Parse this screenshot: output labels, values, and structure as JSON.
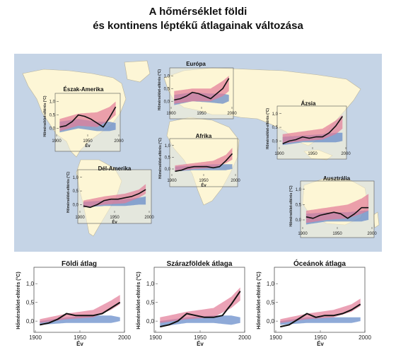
{
  "title_line1": "A hőmérséklet földi",
  "title_line2": "és kontinens léptékű átlagainak változása",
  "colors": {
    "ocean": "#c5d4e6",
    "land": "#fdf6d6",
    "anthro_band": "#e27b97",
    "natural_band": "#5f86c7",
    "observed": "#111111"
  },
  "chart_data": [
    {
      "type": "line",
      "name": "Észak-Amerika",
      "title": "Észak-Amerika",
      "xlabel": "Év",
      "ylabel": "Hőmérséklet-eltérés (°C)",
      "xlim": [
        1900,
        2000
      ],
      "ylim": [
        -0.3,
        1.2
      ],
      "xticks": [
        1900,
        1950,
        2000
      ],
      "xtick_labels": [
        "1900",
        "1950",
        "2000"
      ],
      "yticks": [
        0,
        0.5,
        1.0
      ],
      "ytick_labels": [
        "0,0",
        "0,5",
        "1,0"
      ],
      "observed": {
        "x": [
          1905,
          1915,
          1925,
          1935,
          1945,
          1955,
          1965,
          1975,
          1985,
          1995
        ],
        "y": [
          0.05,
          0.1,
          0.25,
          0.5,
          0.45,
          0.35,
          0.2,
          0.05,
          0.4,
          0.8
        ],
        "dashed_start": 1905
      },
      "anthro_band": {
        "x": [
          1905,
          1935,
          1965,
          1985,
          1995
        ],
        "low": [
          -0.1,
          0.1,
          0.05,
          0.3,
          0.5
        ],
        "high": [
          0.35,
          0.55,
          0.6,
          0.8,
          1.0
        ]
      },
      "natural_band": {
        "x": [
          1905,
          1935,
          1965,
          1985,
          1995
        ],
        "low": [
          -0.15,
          0.0,
          -0.1,
          -0.1,
          -0.05
        ],
        "high": [
          0.25,
          0.35,
          0.25,
          0.25,
          0.2
        ]
      }
    },
    {
      "type": "line",
      "name": "Európa",
      "title": "Európa",
      "xlabel": "",
      "ylabel": "Hőmérséklet-eltérés (°C)",
      "xlim": [
        1900,
        2000
      ],
      "ylim": [
        -0.3,
        1.2
      ],
      "xticks": [
        1900,
        1950,
        2000
      ],
      "xtick_labels": [
        "1900",
        "1950",
        "2000"
      ],
      "yticks": [
        0,
        0.5,
        1.0
      ],
      "ytick_labels": [
        "0,0",
        "0,5",
        "1,0"
      ],
      "observed": {
        "x": [
          1905,
          1915,
          1925,
          1935,
          1945,
          1955,
          1965,
          1975,
          1985,
          1995
        ],
        "y": [
          0.05,
          0.1,
          0.2,
          0.35,
          0.3,
          0.2,
          0.1,
          0.3,
          0.5,
          0.9
        ],
        "dashed_start": null
      },
      "anthro_band": {
        "x": [
          1905,
          1935,
          1965,
          1985,
          1995
        ],
        "low": [
          -0.1,
          0.0,
          0.0,
          0.2,
          0.4
        ],
        "high": [
          0.4,
          0.5,
          0.5,
          0.8,
          1.0
        ]
      },
      "natural_band": {
        "x": [
          1905,
          1935,
          1965,
          1985,
          1995
        ],
        "low": [
          -0.15,
          0.0,
          -0.05,
          -0.1,
          0.0
        ],
        "high": [
          0.25,
          0.35,
          0.3,
          0.3,
          0.25
        ]
      }
    },
    {
      "type": "line",
      "name": "Ázsia",
      "title": "Ázsia",
      "xlabel": "",
      "ylabel": "Hőmérséklet-eltérés (°C)",
      "xlim": [
        1900,
        2000
      ],
      "ylim": [
        -0.3,
        1.2
      ],
      "xticks": [
        1900,
        1950,
        2000
      ],
      "xtick_labels": [
        "1900",
        "1950",
        "2000"
      ],
      "yticks": [
        0,
        0.5,
        1.0
      ],
      "ytick_labels": [
        "0,0",
        "0,5",
        "1,0"
      ],
      "observed": {
        "x": [
          1905,
          1915,
          1925,
          1935,
          1945,
          1955,
          1965,
          1975,
          1985,
          1995
        ],
        "y": [
          -0.1,
          0.0,
          0.05,
          0.15,
          0.1,
          0.15,
          0.15,
          0.3,
          0.55,
          0.9
        ],
        "dashed_start": null
      },
      "anthro_band": {
        "x": [
          1905,
          1935,
          1965,
          1985,
          1995
        ],
        "low": [
          -0.1,
          0.0,
          0.05,
          0.25,
          0.45
        ],
        "high": [
          0.25,
          0.35,
          0.45,
          0.75,
          0.95
        ]
      },
      "natural_band": {
        "x": [
          1905,
          1935,
          1965,
          1985,
          1995
        ],
        "low": [
          -0.15,
          -0.05,
          -0.05,
          -0.05,
          0.0
        ],
        "high": [
          0.15,
          0.2,
          0.25,
          0.3,
          0.3
        ]
      }
    },
    {
      "type": "line",
      "name": "Afrika",
      "title": "Afrika",
      "xlabel": "Év",
      "ylabel": "Hőmérséklet-eltérés (°C)",
      "xlim": [
        1900,
        2000
      ],
      "ylim": [
        -0.3,
        1.2
      ],
      "xticks": [
        1900,
        1950,
        2000
      ],
      "xtick_labels": [
        "1900",
        "1950",
        "2000"
      ],
      "yticks": [
        0,
        0.5,
        1.0
      ],
      "ytick_labels": [
        "0,0",
        "0,5",
        "1,0"
      ],
      "observed": {
        "x": [
          1905,
          1915,
          1925,
          1935,
          1945,
          1955,
          1965,
          1975,
          1985,
          1995
        ],
        "y": [
          -0.1,
          -0.05,
          0.05,
          0.1,
          0.1,
          0.1,
          0.05,
          0.1,
          0.35,
          0.65
        ],
        "dashed_start": 1905
      },
      "anthro_band": {
        "x": [
          1905,
          1935,
          1965,
          1985,
          1995
        ],
        "low": [
          -0.1,
          0.0,
          0.05,
          0.25,
          0.4
        ],
        "high": [
          0.15,
          0.25,
          0.35,
          0.6,
          0.9
        ]
      },
      "natural_band": {
        "x": [
          1905,
          1935,
          1965,
          1985,
          1995
        ],
        "low": [
          -0.1,
          -0.05,
          -0.05,
          -0.05,
          0.0
        ],
        "high": [
          0.1,
          0.15,
          0.2,
          0.2,
          0.2
        ]
      }
    },
    {
      "type": "line",
      "name": "Dél-Amerika",
      "title": "Dél-Amerika",
      "xlabel": "Év",
      "ylabel": "Hőmérséklet-eltérés (°C)",
      "xlim": [
        1900,
        2000
      ],
      "ylim": [
        -0.3,
        1.2
      ],
      "xticks": [
        1900,
        1950,
        2000
      ],
      "xtick_labels": [
        "1900",
        "1950",
        "2000"
      ],
      "yticks": [
        0,
        0.5,
        1.0
      ],
      "ytick_labels": [
        "0,0",
        "0,5",
        "1,0"
      ],
      "observed": {
        "x": [
          1905,
          1915,
          1925,
          1935,
          1945,
          1955,
          1965,
          1975,
          1985,
          1995
        ],
        "y": [
          -0.05,
          -0.1,
          0.0,
          0.15,
          0.2,
          0.2,
          0.25,
          0.3,
          0.4,
          0.55
        ],
        "dashed_start": 1905
      },
      "anthro_band": {
        "x": [
          1905,
          1935,
          1965,
          1985,
          1995
        ],
        "low": [
          -0.1,
          0.0,
          0.05,
          0.25,
          0.4
        ],
        "high": [
          0.15,
          0.3,
          0.4,
          0.55,
          0.75
        ]
      },
      "natural_band": {
        "x": [
          1905,
          1935,
          1965,
          1985,
          1995
        ],
        "low": [
          -0.1,
          -0.05,
          -0.05,
          0.0,
          0.0
        ],
        "high": [
          0.1,
          0.15,
          0.2,
          0.25,
          0.3
        ]
      }
    },
    {
      "type": "line",
      "name": "Ausztrália",
      "title": "Ausztrália",
      "xlabel": "",
      "ylabel": "Hőmérséklet-eltérés (°C)",
      "xlim": [
        1900,
        2000
      ],
      "ylim": [
        -0.3,
        1.2
      ],
      "xticks": [
        1900,
        1950,
        2000
      ],
      "xtick_labels": [
        "1900",
        "1950",
        "2000"
      ],
      "yticks": [
        0,
        0.5,
        1.0
      ],
      "ytick_labels": [
        "0,0",
        "0,5",
        "1,0"
      ],
      "observed": {
        "x": [
          1905,
          1915,
          1925,
          1935,
          1945,
          1955,
          1965,
          1975,
          1985,
          1995
        ],
        "y": [
          0.1,
          0.05,
          0.15,
          0.2,
          0.25,
          0.2,
          0.05,
          0.2,
          0.4,
          0.4
        ],
        "dashed_start": null
      },
      "anthro_band": {
        "x": [
          1905,
          1935,
          1965,
          1985,
          1995
        ],
        "low": [
          -0.1,
          0.0,
          0.05,
          0.2,
          0.3
        ],
        "high": [
          0.3,
          0.4,
          0.5,
          0.7,
          0.85
        ]
      },
      "natural_band": {
        "x": [
          1905,
          1935,
          1965,
          1985,
          1995
        ],
        "low": [
          -0.15,
          -0.05,
          -0.05,
          -0.05,
          0.0
        ],
        "high": [
          0.2,
          0.25,
          0.25,
          0.3,
          0.3
        ]
      }
    },
    {
      "type": "line",
      "name": "Földi átlag",
      "title": "Földi átlag",
      "xlabel": "Év",
      "ylabel": "Hőmérséklet-eltérés (°C)",
      "xlim": [
        1900,
        2000
      ],
      "ylim": [
        -0.3,
        1.4
      ],
      "xticks": [
        1900,
        1950,
        2000
      ],
      "xtick_labels": [
        "1900",
        "1950",
        "2000"
      ],
      "yticks": [
        0,
        0.5,
        1.0
      ],
      "ytick_labels": [
        "0,0",
        "0,5",
        "1,0"
      ],
      "observed": {
        "x": [
          1905,
          1915,
          1925,
          1935,
          1945,
          1955,
          1965,
          1975,
          1985,
          1995
        ],
        "y": [
          -0.1,
          -0.05,
          0.05,
          0.2,
          0.15,
          0.15,
          0.15,
          0.2,
          0.35,
          0.5
        ],
        "dashed_start": 1905
      },
      "anthro_band": {
        "x": [
          1905,
          1935,
          1965,
          1985,
          1995
        ],
        "low": [
          -0.05,
          0.05,
          0.1,
          0.3,
          0.45
        ],
        "high": [
          0.05,
          0.2,
          0.3,
          0.55,
          0.7
        ]
      },
      "natural_band": {
        "x": [
          1905,
          1935,
          1965,
          1985,
          1995
        ],
        "low": [
          -0.1,
          -0.05,
          -0.05,
          -0.05,
          0.0
        ],
        "high": [
          0.0,
          0.1,
          0.15,
          0.15,
          0.1
        ]
      }
    },
    {
      "type": "line",
      "name": "Szárazföldek átlaga",
      "title": "Szárazföldek átlaga",
      "xlabel": "Év",
      "ylabel": "Hőmérséklet-eltérés (°C)",
      "xlim": [
        1900,
        2000
      ],
      "ylim": [
        -0.3,
        1.4
      ],
      "xticks": [
        1900,
        1950,
        2000
      ],
      "xtick_labels": [
        "1900",
        "1950",
        "2000"
      ],
      "yticks": [
        0,
        0.5,
        1.0
      ],
      "ytick_labels": [
        "0,0",
        "0,5",
        "1,0"
      ],
      "observed": {
        "x": [
          1905,
          1915,
          1925,
          1935,
          1945,
          1955,
          1965,
          1975,
          1985,
          1995
        ],
        "y": [
          -0.15,
          -0.1,
          0.0,
          0.2,
          0.15,
          0.1,
          0.1,
          0.15,
          0.45,
          0.8
        ],
        "dashed_start": 1905
      },
      "anthro_band": {
        "x": [
          1905,
          1935,
          1965,
          1985,
          1995
        ],
        "low": [
          -0.05,
          0.05,
          0.1,
          0.35,
          0.55
        ],
        "high": [
          0.1,
          0.25,
          0.35,
          0.65,
          0.9
        ]
      },
      "natural_band": {
        "x": [
          1905,
          1935,
          1965,
          1985,
          1995
        ],
        "low": [
          -0.15,
          -0.05,
          -0.05,
          -0.1,
          -0.05
        ],
        "high": [
          0.0,
          0.1,
          0.15,
          0.15,
          0.1
        ]
      }
    },
    {
      "type": "line",
      "name": "Óceánok átlaga",
      "title": "Óceánok átlaga",
      "xlabel": "Év",
      "ylabel": "Hőmérséklet-eltérés (°C)",
      "xlim": [
        1900,
        2000
      ],
      "ylim": [
        -0.3,
        1.4
      ],
      "xticks": [
        1900,
        1950,
        2000
      ],
      "xtick_labels": [
        "1900",
        "1950",
        "2000"
      ],
      "yticks": [
        0,
        0.5,
        1.0
      ],
      "ytick_labels": [
        "0,0",
        "0,5",
        "1,0"
      ],
      "observed": {
        "x": [
          1905,
          1915,
          1925,
          1935,
          1945,
          1955,
          1965,
          1975,
          1985,
          1995
        ],
        "y": [
          -0.15,
          -0.1,
          0.05,
          0.2,
          0.1,
          0.15,
          0.15,
          0.2,
          0.3,
          0.45
        ],
        "dashed_start": 1905
      },
      "anthro_band": {
        "x": [
          1905,
          1935,
          1965,
          1985,
          1995
        ],
        "low": [
          -0.05,
          0.05,
          0.1,
          0.25,
          0.4
        ],
        "high": [
          0.05,
          0.2,
          0.3,
          0.45,
          0.6
        ]
      },
      "natural_band": {
        "x": [
          1905,
          1935,
          1965,
          1985,
          1995
        ],
        "low": [
          -0.1,
          -0.05,
          -0.05,
          -0.05,
          0.0
        ],
        "high": [
          0.0,
          0.1,
          0.1,
          0.1,
          0.1
        ]
      }
    }
  ]
}
